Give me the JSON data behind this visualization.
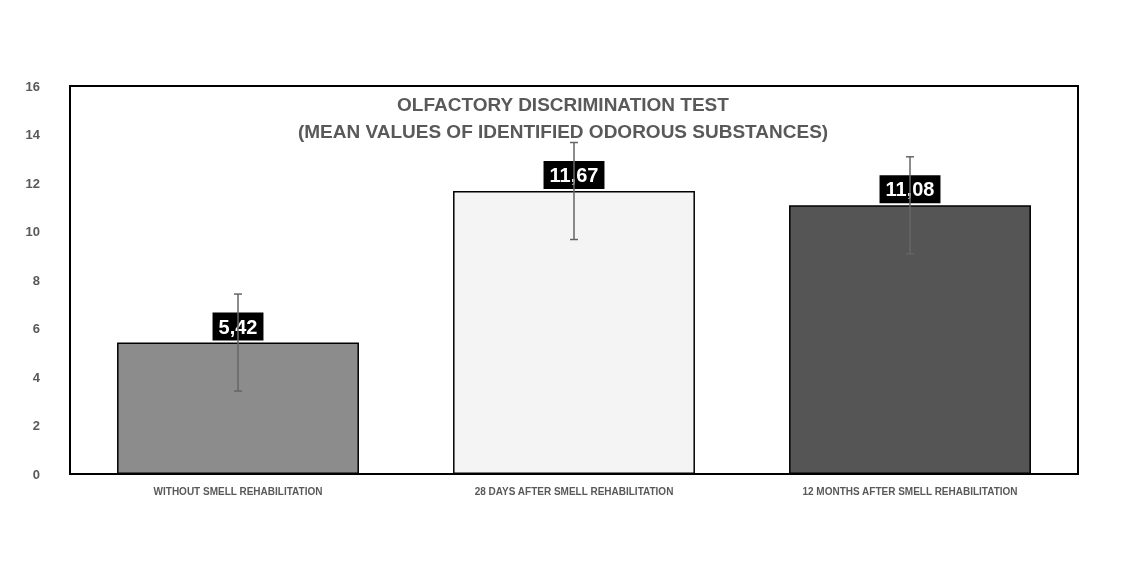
{
  "chart_data": {
    "type": "bar",
    "title": "OLFACTORY DISCRIMINATION TEST",
    "subtitle": "(MEAN VALUES OF IDENTIFIED ODOROUS SUBSTANCES)",
    "categories": [
      "WITHOUT SMELL REHABILITATION",
      "28 DAYS AFTER SMELL REHABILITATION",
      "12 MONTHS AFTER SMELL REHABILITATION"
    ],
    "values": [
      5.42,
      11.67,
      11.08
    ],
    "colors": [
      "#8c8c8c",
      "#f4f4f4",
      "#555555"
    ],
    "errors": [
      2,
      2,
      2
    ],
    "value_labels": [
      "5,42",
      "11,67",
      "11,08"
    ],
    "ylim": [
      0,
      16
    ],
    "yticks": [
      0,
      2,
      4,
      6,
      8,
      10,
      12,
      14,
      16
    ],
    "grid": false
  }
}
